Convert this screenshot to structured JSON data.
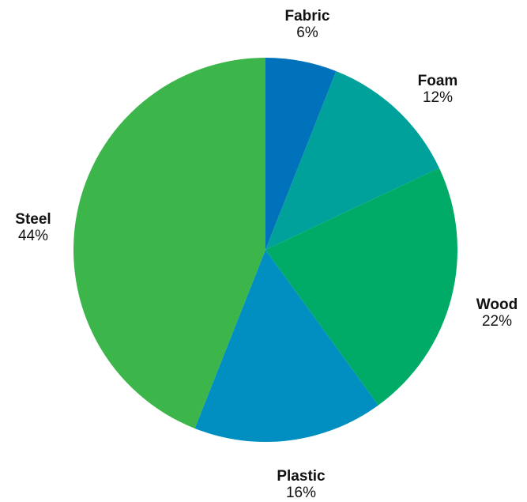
{
  "chart_data": {
    "type": "pie",
    "slices": [
      {
        "label": "Fabric",
        "value": 6,
        "value_label": "6%",
        "color": "#0072BC"
      },
      {
        "label": "Foam",
        "value": 12,
        "value_label": "12%",
        "color": "#00A19A"
      },
      {
        "label": "Wood",
        "value": 22,
        "value_label": "22%",
        "color": "#00AB67"
      },
      {
        "label": "Plastic",
        "value": 16,
        "value_label": "16%",
        "color": "#008FC0"
      },
      {
        "label": "Steel",
        "value": 44,
        "value_label": "44%",
        "color": "#3CB54A"
      }
    ],
    "start_angle": "12 o'clock",
    "direction": "clockwise"
  }
}
